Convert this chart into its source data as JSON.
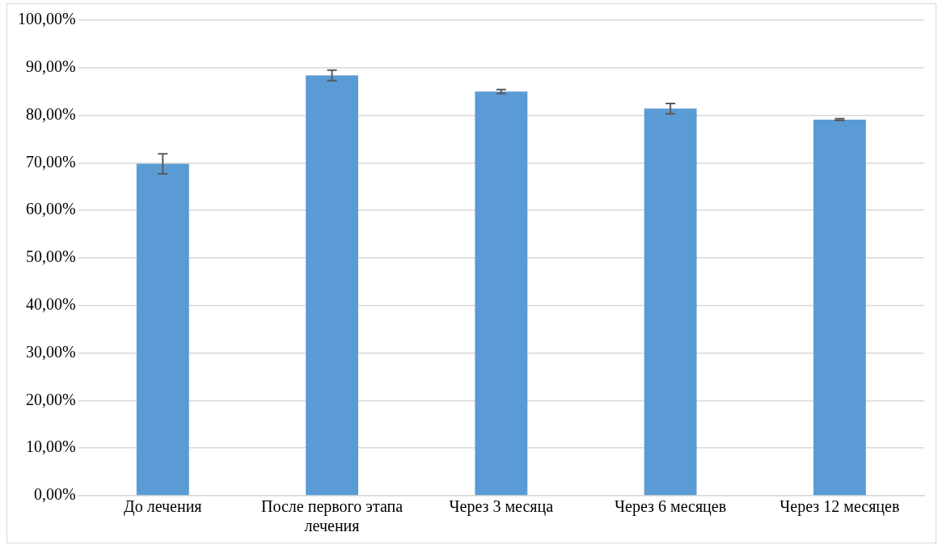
{
  "chart_data": {
    "type": "bar",
    "categories": [
      "До лечения",
      "После первого этапа лечения",
      "Через 3 месяца",
      "Через 6 месяцев",
      "Через 12 месяцев"
    ],
    "values": [
      69.8,
      88.4,
      85.0,
      81.4,
      79.1
    ],
    "errors": [
      2.1,
      1.1,
      0.4,
      1.1,
      0.2
    ],
    "color": "#5b9bd5",
    "ylim": [
      0,
      100
    ],
    "yticks": [
      {
        "value": 0,
        "label": "0,00%"
      },
      {
        "value": 10,
        "label": "10,00%"
      },
      {
        "value": 20,
        "label": "20,00%"
      },
      {
        "value": 30,
        "label": "30,00%"
      },
      {
        "value": 40,
        "label": "40,00%"
      },
      {
        "value": 50,
        "label": "50,00%"
      },
      {
        "value": 60,
        "label": "60,00%"
      },
      {
        "value": 70,
        "label": "70,00%"
      },
      {
        "value": 80,
        "label": "80,00%"
      },
      {
        "value": 90,
        "label": "90,00%"
      },
      {
        "value": 100,
        "label": "100,00%"
      }
    ],
    "grid": "y"
  }
}
